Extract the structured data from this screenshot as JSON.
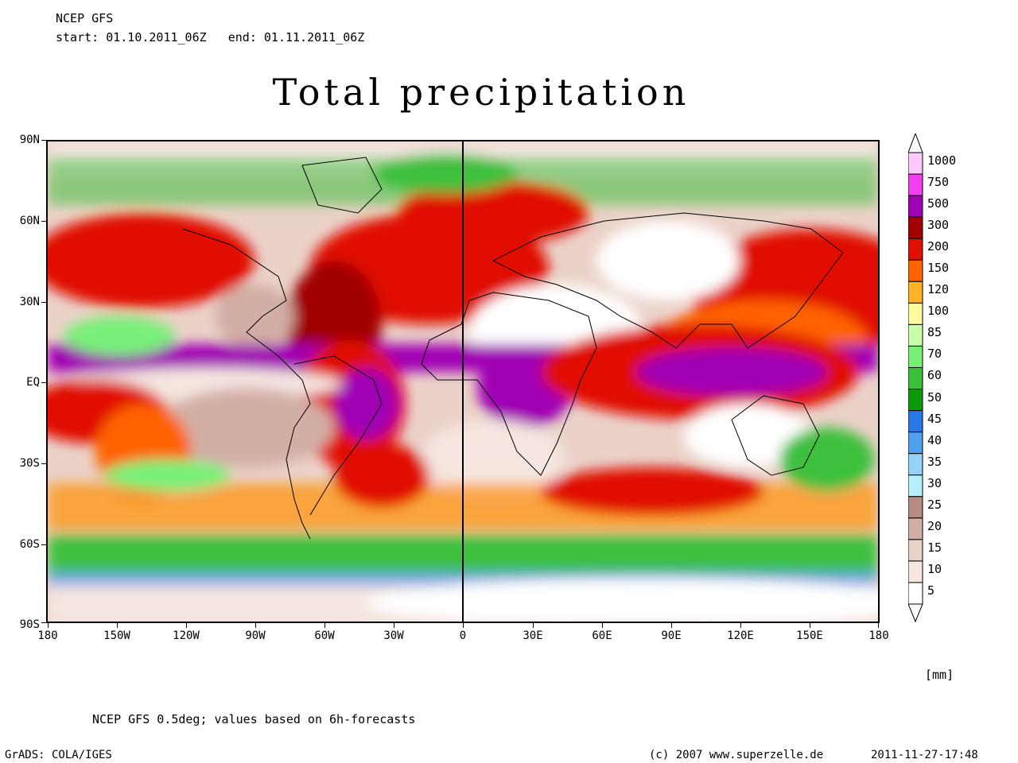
{
  "header": {
    "model": "NCEP GFS",
    "period": "start: 01.10.2011_06Z   end: 01.11.2011_06Z"
  },
  "title": "Total precipitation",
  "map": {
    "lat_labels": [
      "90N",
      "60N",
      "30N",
      "EQ",
      "30S",
      "60S",
      "90S"
    ],
    "lon_labels": [
      "180",
      "150W",
      "120W",
      "90W",
      "60W",
      "30W",
      "0",
      "30E",
      "60E",
      "90E",
      "120E",
      "150E",
      "180"
    ],
    "field": "total precipitation",
    "highlight_colors": {
      "wet_max": "#a000b4",
      "heavy": "#e01000",
      "moderate": "#ff9000",
      "light": "#3cc03c",
      "dry": "#ffffff"
    }
  },
  "legend": {
    "levels": [
      "1000",
      "750",
      "500",
      "300",
      "200",
      "150",
      "120",
      "100",
      "85",
      "70",
      "60",
      "50",
      "45",
      "40",
      "35",
      "30",
      "25",
      "20",
      "15",
      "10",
      "5"
    ],
    "colors": [
      "#ffc8ff",
      "#f040f0",
      "#a000b4",
      "#a00000",
      "#e01000",
      "#ff6400",
      "#ffb428",
      "#fffaa0",
      "#c8ffaa",
      "#78f078",
      "#3cc03c",
      "#0a9a0a",
      "#2878e6",
      "#50a0f0",
      "#96d2fa",
      "#b4f0fa",
      "#b48c82",
      "#d2afa5",
      "#ebd2c8",
      "#f5e6e1",
      "#ffffff"
    ],
    "unit": "[mm]"
  },
  "footnote": "NCEP GFS 0.5deg; values based on 6h-forecasts",
  "footer": {
    "left": "GrADS: COLA/IGES",
    "copyright": "(c) 2007 www.superzelle.de",
    "date": "2011-11-27-17:48"
  }
}
